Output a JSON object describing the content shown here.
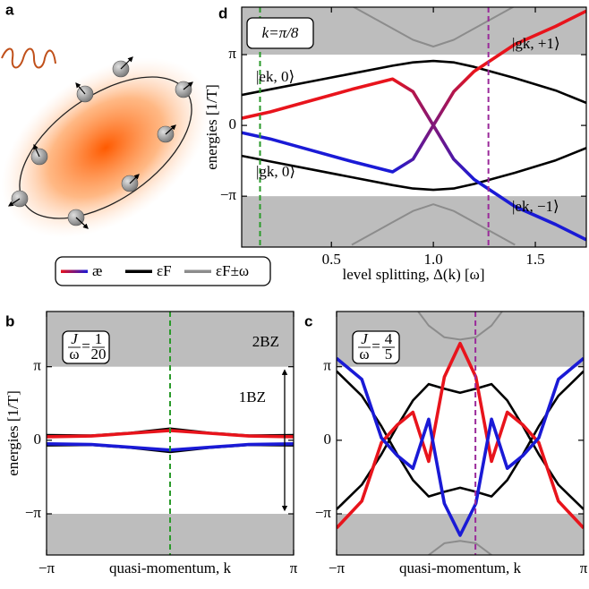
{
  "panel_a_label": "a",
  "legend": [
    {
      "label": "æ",
      "color": "#e8141c",
      "color_end": "#1a1ad6"
    },
    {
      "label": "εF",
      "color": "#000000"
    },
    {
      "label": "εF±ω",
      "color": "#8c8c8c"
    }
  ],
  "chart_data": [
    {
      "type": "line",
      "panel_label": "d",
      "box_label": "k=π/8",
      "ylabel": "energies [1/T]",
      "xlabel": "level splitting, Δ(k) [ω]",
      "x": [
        0.06,
        0.2,
        0.4,
        0.6,
        0.8,
        0.9,
        1.0,
        1.1,
        1.2,
        1.4,
        1.6,
        1.75
      ],
      "xlim": [
        0.06,
        1.75
      ],
      "ylim": [
        -5.4,
        5.25
      ],
      "xticks": [
        {
          "value": 0.5,
          "label": "0.5"
        },
        {
          "value": 1.0,
          "label": "1.0"
        },
        {
          "value": 1.5,
          "label": "1.5"
        }
      ],
      "yticks": [
        {
          "value": -3.1416,
          "label": "−π"
        },
        0,
        {
          "value": 3.1416,
          "label": "π"
        }
      ],
      "shade_outside": [
        -3.1416,
        3.1416
      ],
      "shade_color": "#bdbdbd",
      "vlines": [
        {
          "value": 0.15,
          "color": "#2a9a2a"
        },
        {
          "value": 1.27,
          "color": "#9a2a9a"
        }
      ],
      "annotations": [
        "|ek, 0⟩",
        "|gk, 0⟩",
        "|gk, +1⟩",
        "|ek, −1⟩"
      ],
      "series": [
        {
          "color": "#8c8c8c",
          "values": [
            null,
            null,
            null,
            5.3,
            4.3,
            3.8,
            3.5,
            3.8,
            4.3,
            5.3,
            null,
            null
          ]
        },
        {
          "color": "#8c8c8c",
          "values": [
            null,
            null,
            null,
            -5.3,
            -4.3,
            -3.8,
            -3.5,
            -3.8,
            -4.3,
            -5.3,
            null,
            null
          ]
        },
        {
          "color": "#000000",
          "values": [
            1.35,
            1.6,
            1.95,
            2.3,
            2.65,
            2.8,
            2.86,
            2.8,
            2.6,
            2.1,
            1.55,
            1.0
          ]
        },
        {
          "color": "#000000",
          "values": [
            -1.35,
            -1.6,
            -1.95,
            -2.3,
            -2.65,
            -2.8,
            -2.86,
            -2.8,
            -2.6,
            -2.1,
            -1.55,
            -1.0
          ]
        },
        {
          "color": "#e8141c",
          "color_end": "#1a1ad6",
          "blend": [
            0.8,
            1.2
          ],
          "values": [
            0.32,
            0.6,
            1.1,
            1.6,
            2.06,
            1.5,
            0,
            -1.5,
            -2.4,
            -3.6,
            -4.4,
            -5.08
          ]
        },
        {
          "color": "#1a1ad6",
          "color_end": "#e8141c",
          "blend": [
            0.8,
            1.2
          ],
          "values": [
            -0.32,
            -0.6,
            -1.1,
            -1.6,
            -2.06,
            -1.5,
            0,
            1.5,
            2.4,
            3.6,
            4.4,
            5.08
          ]
        }
      ]
    },
    {
      "type": "line",
      "panel_label": "b",
      "ylabel": "energies [1/T]",
      "xlabel": "quasi-momentum, k",
      "ratio": {
        "num": "J",
        "den": "ω",
        "eq": "=",
        "rhs_num": "1",
        "rhs_den": "20"
      },
      "annotations": [
        "2BZ",
        "1BZ"
      ],
      "bz_arrow": [
        -3.1416,
        3.1416
      ],
      "x": [
        -3.1416,
        -2,
        -1,
        0,
        1,
        2,
        3.1416
      ],
      "xlim": [
        -3.1416,
        3.1416
      ],
      "ylim": [
        -4.9,
        5.5
      ],
      "xticks": [
        {
          "value": -3.1416,
          "label": "−π"
        },
        {
          "value": 3.1416,
          "label": "π"
        }
      ],
      "yticks": [
        {
          "value": -3.1416,
          "label": "−π"
        },
        0,
        {
          "value": 3.1416,
          "label": "π"
        }
      ],
      "shade_outside": [
        -3.1416,
        3.1416
      ],
      "shade_color": "#bdbdbd",
      "vlines": [
        {
          "value": 0,
          "color": "#2a9a2a"
        }
      ],
      "series": [
        {
          "color": "#000000",
          "values": [
            0.22,
            0.2,
            0.32,
            0.5,
            0.32,
            0.2,
            0.22
          ]
        },
        {
          "color": "#000000",
          "values": [
            -0.22,
            -0.2,
            -0.32,
            -0.5,
            -0.32,
            -0.2,
            -0.22
          ]
        },
        {
          "color": "#e8141c",
          "values": [
            0.15,
            0.18,
            0.3,
            0.42,
            0.3,
            0.18,
            0.15
          ]
        },
        {
          "color": "#1a1ad6",
          "values": [
            -0.15,
            -0.18,
            -0.3,
            -0.42,
            -0.3,
            -0.18,
            -0.15
          ]
        }
      ]
    },
    {
      "type": "line",
      "panel_label": "c",
      "xlabel": "quasi-momentum, k",
      "ratio": {
        "num": "J",
        "den": "ω",
        "eq": "=",
        "rhs_num": "4",
        "rhs_den": "5"
      },
      "x": [
        -3.1416,
        -2.5,
        -2,
        -1.6,
        -1.2,
        -0.8,
        -0.4,
        0,
        0.4,
        0.8,
        1.2,
        1.6,
        2,
        2.5,
        3.1416
      ],
      "xlim": [
        -3.1416,
        3.1416
      ],
      "ylim": [
        -4.9,
        5.5
      ],
      "xticks": [
        {
          "value": -3.1416,
          "label": "−π"
        },
        {
          "value": 3.1416,
          "label": "π"
        }
      ],
      "yticks": [
        {
          "value": -3.1416,
          "label": "−π"
        },
        0,
        {
          "value": 3.1416,
          "label": "π"
        }
      ],
      "shade_outside": [
        -3.1416,
        3.1416
      ],
      "shade_color": "#bdbdbd",
      "vlines": [
        {
          "value": 0.39,
          "color": "#9a2a9a"
        }
      ],
      "series": [
        {
          "color": "#8c8c8c",
          "values": [
            null,
            null,
            null,
            null,
            5.8,
            4.9,
            4.4,
            4.3,
            4.4,
            4.9,
            5.8,
            null,
            null,
            null,
            null
          ]
        },
        {
          "color": "#8c8c8c",
          "values": [
            null,
            null,
            null,
            null,
            -5.8,
            -4.9,
            -4.4,
            -4.3,
            -4.4,
            -4.9,
            -5.8,
            null,
            null,
            null,
            null
          ]
        },
        {
          "color": "#000000",
          "values": [
            2.95,
            1.9,
            0.6,
            -0.6,
            -1.7,
            -2.4,
            -2.2,
            -2.03,
            -2.2,
            -2.4,
            -1.7,
            -0.6,
            0.6,
            1.9,
            2.95
          ]
        },
        {
          "color": "#000000",
          "values": [
            -2.95,
            -1.9,
            -0.6,
            0.6,
            1.7,
            2.4,
            2.2,
            2.03,
            2.2,
            2.4,
            1.7,
            0.6,
            -0.6,
            -1.9,
            -2.95
          ]
        },
        {
          "color": "#e8141c",
          "values": [
            -3.75,
            -2.6,
            -0.1,
            0.65,
            1.2,
            -0.9,
            2.7,
            4.14,
            2.7,
            -0.9,
            1.2,
            0.65,
            -0.1,
            -2.6,
            -3.75
          ]
        },
        {
          "color": "#1a1ad6",
          "values": [
            3.5,
            2.6,
            0.1,
            -0.65,
            -1.2,
            0.9,
            -2.7,
            -4.06,
            -2.7,
            0.9,
            -1.2,
            -0.65,
            0.1,
            2.6,
            3.5
          ]
        }
      ]
    }
  ]
}
